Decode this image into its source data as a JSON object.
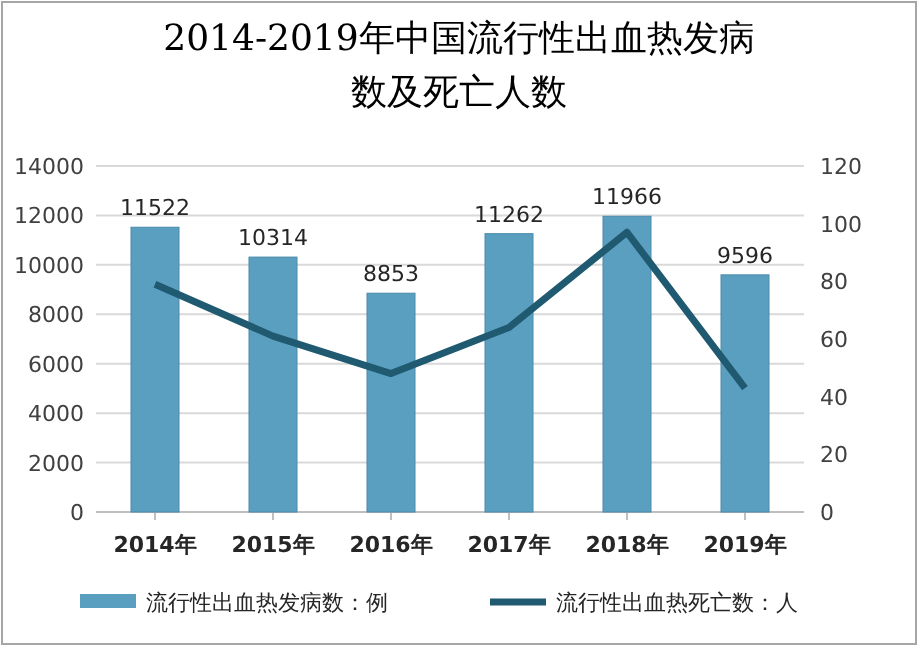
{
  "chart_data": {
    "type": "bar",
    "title": "2014-2019年中国流行性出血热发病数及死亡人数",
    "categories": [
      "2014年",
      "2015年",
      "2016年",
      "2017年",
      "2018年",
      "2019年"
    ],
    "series": [
      {
        "name": "流行性出血热发病数：例",
        "color": "#5a9fc0",
        "values": [
          11522,
          10314,
          8853,
          11262,
          11966,
          9596
        ],
        "value_labels": [
          "11522",
          "10314",
          "8853",
          "11262",
          "11966",
          "9596"
        ]
      },
      {
        "name": "流行性出血热死亡数：人",
        "type": "line",
        "axis": "y2",
        "color": "#1f5a70",
        "values": [
          79,
          61,
          48,
          64,
          97,
          43
        ]
      }
    ],
    "ylim": [
      0,
      14000
    ],
    "yticks": [
      0,
      2000,
      4000,
      6000,
      8000,
      10000,
      12000,
      14000
    ],
    "y2lim": [
      0,
      120
    ],
    "y2ticks": [
      0,
      20,
      40,
      60,
      80,
      100,
      120
    ],
    "grid": "y",
    "legend": "bottom"
  }
}
